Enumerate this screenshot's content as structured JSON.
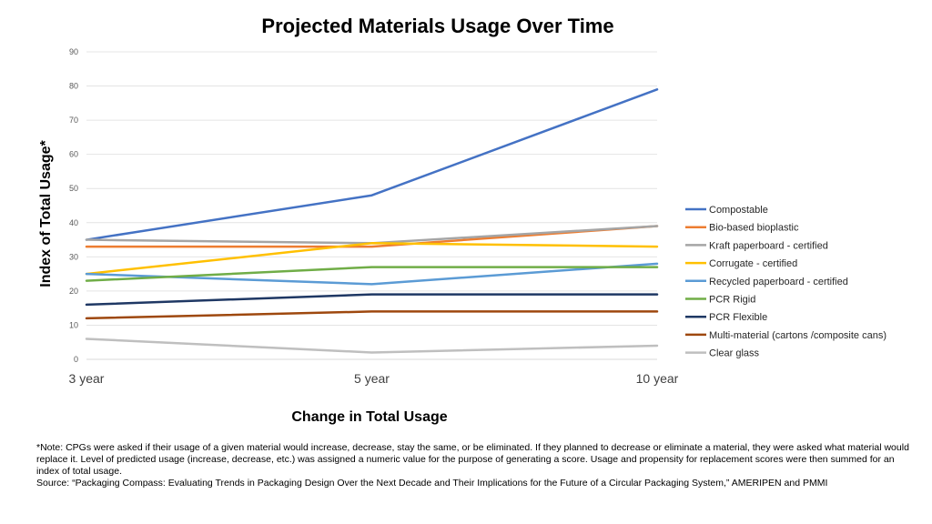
{
  "chart_data": {
    "type": "line",
    "title": "Projected Materials Usage Over Time",
    "xlabel": "Change in Total Usage",
    "ylabel": "Index of Total Usage*",
    "categories": [
      "3 year",
      "5 year",
      "10 year"
    ],
    "ylim": [
      0,
      90
    ],
    "yticks": [
      0,
      10,
      20,
      30,
      40,
      50,
      60,
      70,
      80,
      90
    ],
    "grid": true,
    "legend_position": "right",
    "series": [
      {
        "name": "Compostable",
        "color": "#4472C4",
        "values": [
          35,
          48,
          79
        ]
      },
      {
        "name": "Bio-based bioplastic",
        "color": "#ED7D31",
        "values": [
          33,
          33,
          39
        ]
      },
      {
        "name": "Kraft paperboard - certified",
        "color": "#A5A5A5",
        "values": [
          35,
          34,
          39
        ]
      },
      {
        "name": "Corrugate - certified",
        "color": "#FFC000",
        "values": [
          25,
          34,
          33
        ]
      },
      {
        "name": "Recycled paperboard - certified",
        "color": "#5B9BD5",
        "values": [
          25,
          22,
          28
        ]
      },
      {
        "name": "PCR Rigid",
        "color": "#70AD47",
        "values": [
          23,
          27,
          27
        ]
      },
      {
        "name": "PCR Flexible",
        "color": "#1F3864",
        "values": [
          16,
          19,
          19
        ]
      },
      {
        "name": "Multi-material  (cartons /composite cans)",
        "color": "#9E480E",
        "values": [
          12,
          14,
          14
        ]
      },
      {
        "name": "Clear glass",
        "color": "#BFBFBF",
        "values": [
          6,
          2,
          4
        ]
      }
    ]
  },
  "note": {
    "text": "*Note: CPGs were asked if their usage of a given material would increase, decrease, stay the same, or be eliminated. If they planned to decrease or eliminate a material, they were asked what material would replace it. Level of predicted usage (increase, decrease, etc.) was assigned a numeric value for the purpose of generating a score. Usage and propensity for replacement scores were then summed for an index of total usage.",
    "source": "Source: “Packaging Compass: Evaluating Trends in Packaging Design Over the Next Decade and Their Implications for the Future of a Circular Packaging System,” AMERIPEN and PMMI"
  }
}
